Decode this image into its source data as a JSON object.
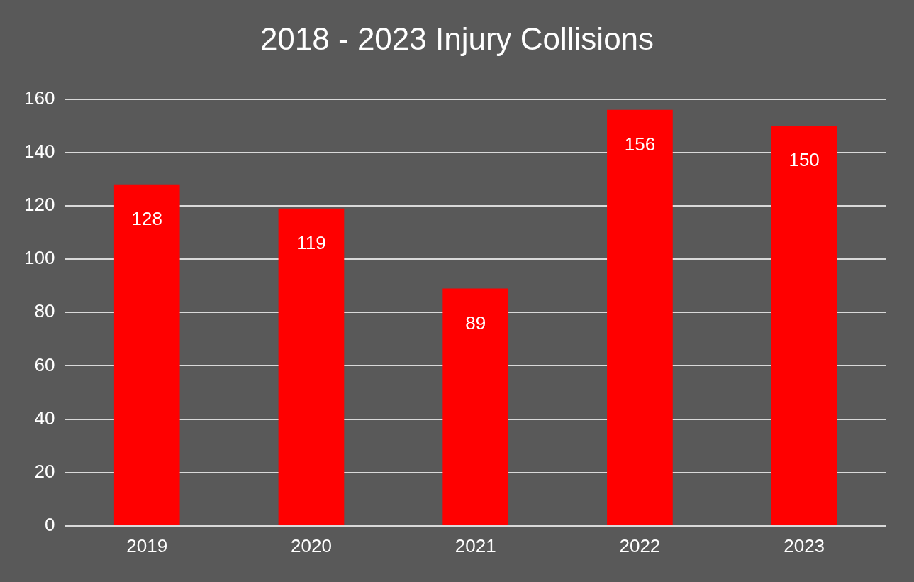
{
  "chart_data": {
    "type": "bar",
    "title": "2018 - 2023 Injury Collisions",
    "categories": [
      "2019",
      "2020",
      "2021",
      "2022",
      "2023"
    ],
    "values": [
      128,
      119,
      89,
      156,
      150
    ],
    "color": "#ff0000",
    "ylim": [
      0,
      160
    ],
    "yticks": [
      0,
      20,
      40,
      60,
      80,
      100,
      120,
      140,
      160
    ],
    "grid": "y",
    "data_labels": true
  }
}
